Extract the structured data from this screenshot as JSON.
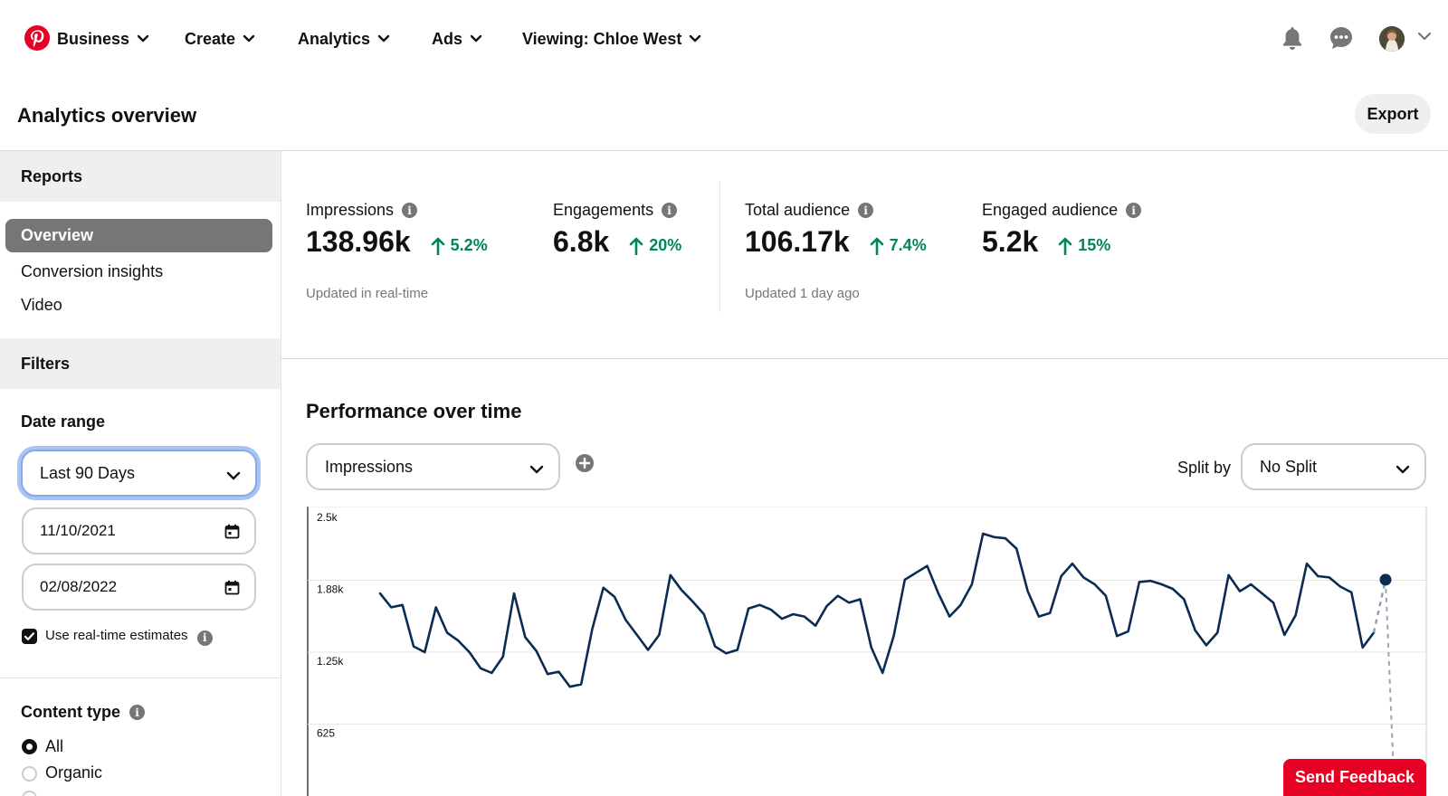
{
  "nav": {
    "logo_icon": "pinterest-logo-icon",
    "items": [
      {
        "label": "Business"
      },
      {
        "label": "Create"
      },
      {
        "label": "Analytics"
      },
      {
        "label": "Ads"
      },
      {
        "label": "Viewing: Chloe West"
      }
    ],
    "icons": [
      "bell-icon",
      "chat-icon",
      "avatar",
      "chevron-down-icon"
    ]
  },
  "header": {
    "title": "Analytics overview",
    "export_label": "Export"
  },
  "sidebar": {
    "reports_heading": "Reports",
    "reports": [
      {
        "label": "Overview",
        "selected": true
      },
      {
        "label": "Conversion insights"
      },
      {
        "label": "Video"
      }
    ],
    "filters_heading": "Filters",
    "date_range": {
      "label": "Date range",
      "selected": "Last 90 Days",
      "start": "11/10/2021",
      "end": "02/08/2022"
    },
    "realtime": {
      "label": "Use real-time estimates",
      "checked": true
    },
    "content_type": {
      "label": "Content type",
      "options": [
        {
          "label": "All",
          "selected": true
        },
        {
          "label": "Organic",
          "selected": false
        }
      ]
    }
  },
  "metrics": [
    {
      "label": "Impressions",
      "value": "138.96k",
      "change": "5.2%"
    },
    {
      "label": "Engagements",
      "value": "6.8k",
      "change": "20%"
    },
    {
      "label": "Total audience",
      "value": "106.17k",
      "change": "7.4%"
    },
    {
      "label": "Engaged audience",
      "value": "5.2k",
      "change": "15%"
    }
  ],
  "metric_notes": {
    "realtime": "Updated in real-time",
    "daily": "Updated 1 day ago"
  },
  "performance": {
    "title": "Performance over time",
    "metric_select": "Impressions",
    "split_label": "Split by",
    "split_select": "No Split"
  },
  "feedback_label": "Send Feedback",
  "colors": {
    "brand": "#e60023",
    "positive": "#008753",
    "line": "#0b2b52"
  },
  "chart_data": {
    "type": "line",
    "yticks": [
      "2.5k",
      "1.88k",
      "1.25k",
      "625"
    ],
    "ylim": [
      0,
      2500
    ],
    "series": [
      {
        "values": [
          1760,
          1640,
          1660,
          1300,
          1250,
          1640,
          1420,
          1350,
          1250,
          1110,
          1070,
          1210,
          1760,
          1380,
          1260,
          1060,
          1080,
          950,
          970,
          1450,
          1810,
          1730,
          1530,
          1400,
          1270,
          1400,
          1920,
          1790,
          1690,
          1580,
          1300,
          1240,
          1270,
          1630,
          1660,
          1620,
          1540,
          1580,
          1560,
          1480,
          1650,
          1740,
          1680,
          1710,
          1290,
          1070,
          1390,
          1880,
          1940,
          2000,
          1760,
          1560,
          1660,
          1840,
          2280,
          2250,
          2240,
          2150,
          1780,
          1560,
          1590,
          1910,
          2020,
          1900,
          1840,
          1740,
          1390,
          1430,
          1860,
          1870,
          1840,
          1800,
          1710,
          1440,
          1310,
          1420,
          1920,
          1780,
          1840,
          1760,
          1680,
          1400,
          1570,
          2020,
          1910,
          1900,
          1820,
          1770,
          1290,
          1420
        ],
        "projected_last": 1880
      }
    ]
  }
}
